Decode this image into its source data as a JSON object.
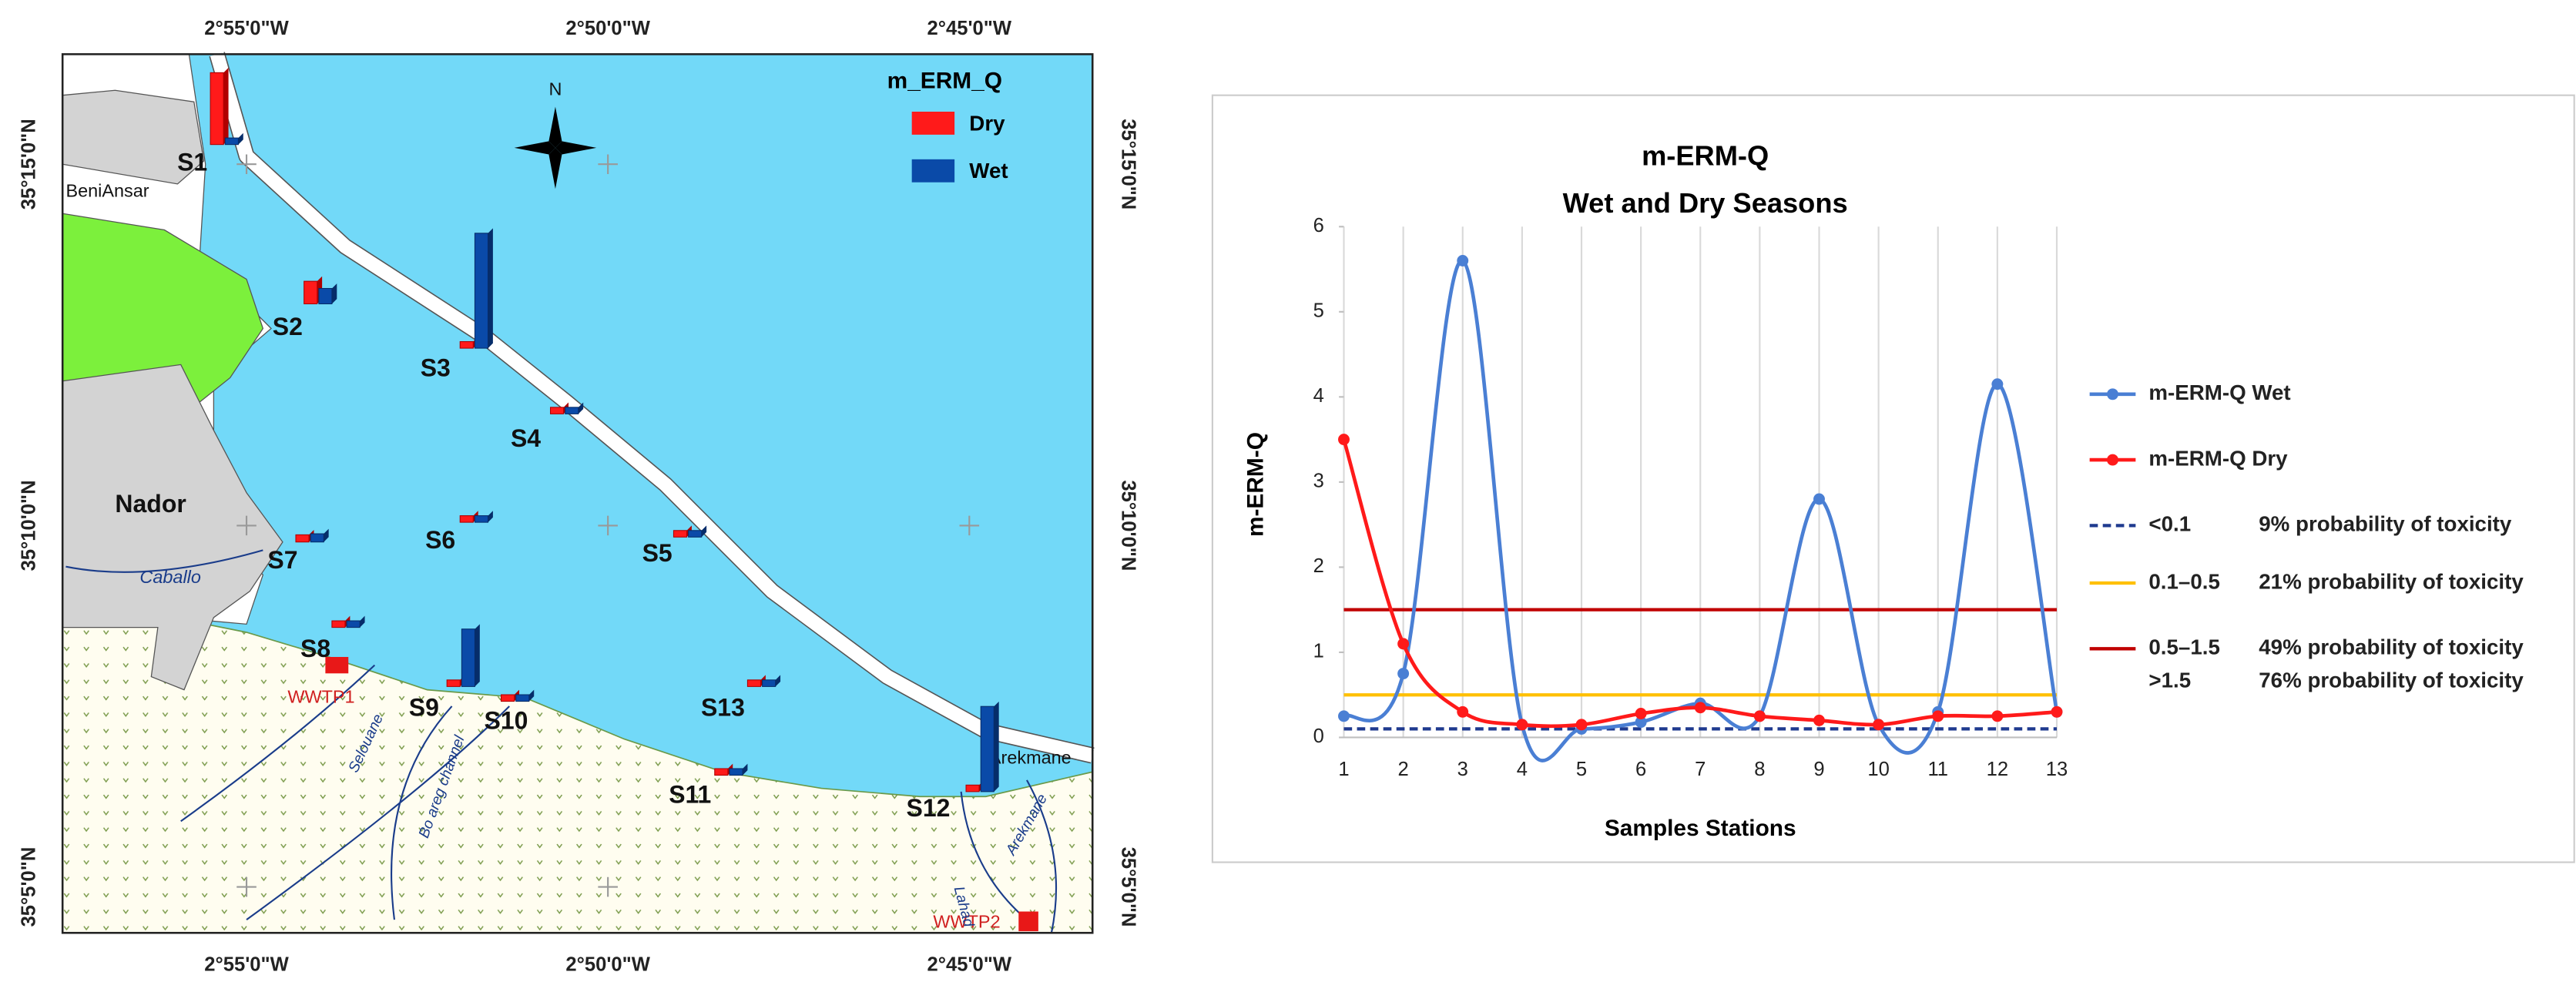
{
  "map": {
    "coordinates_top": [
      "2°55'0\"W",
      "2°50'0\"W",
      "2°45'0\"W"
    ],
    "coordinates_bottom": [
      "2°55'0\"W",
      "2°50'0\"W",
      "2°45'0\"W"
    ],
    "coordinates_left": [
      "35°15'0\"N",
      "35°10'0\"N",
      "35°5'0\"N"
    ],
    "coordinates_right": [
      "35°15'0\"N",
      "35°10'0\"N",
      "35°5'0\"N"
    ],
    "legend": {
      "title": "m_ERM_Q",
      "items": [
        "Dry",
        "Wet"
      ]
    },
    "north": "N",
    "places": [
      "BeniAnsar",
      "Nador",
      "Caballo",
      "Arekmane",
      "WWTP1",
      "WWTP2"
    ],
    "rivers": [
      "Selouane",
      "Bo areg channel",
      "Lahad",
      "Arekmane"
    ],
    "stations": [
      "S1",
      "S2",
      "S3",
      "S4",
      "S5",
      "S6",
      "S7",
      "S8",
      "S9",
      "S10",
      "S11",
      "S12",
      "S13"
    ]
  },
  "chart_data": {
    "type": "line",
    "title": "m-ERM-Q",
    "subtitle": "Wet and Dry Seasons",
    "x_label": "Samples Stations",
    "y_label": "m-ERM-Q",
    "x": [
      1,
      2,
      3,
      4,
      5,
      6,
      7,
      8,
      9,
      10,
      11,
      12,
      13
    ],
    "xlim": [
      1,
      13
    ],
    "xticks": [
      1,
      2,
      3,
      4,
      5,
      6,
      7,
      8,
      9,
      10,
      11,
      12,
      13
    ],
    "ylim": [
      0,
      6
    ],
    "yticks": [
      0,
      1,
      2,
      3,
      4,
      5,
      6
    ],
    "grid": "x",
    "smooth": true,
    "series": [
      {
        "name": "m-ERM-Q  Wet",
        "color": "#4a7fd4",
        "values": [
          0.25,
          0.75,
          5.6,
          0.15,
          0.1,
          0.18,
          0.4,
          0.25,
          2.8,
          0.15,
          0.3,
          4.15,
          0.3
        ]
      },
      {
        "name": "m-ERM-Q  Dry",
        "color": "#ff1a1a",
        "values": [
          3.5,
          1.1,
          0.3,
          0.15,
          0.15,
          0.28,
          0.35,
          0.25,
          0.2,
          0.15,
          0.25,
          0.25,
          0.3
        ]
      }
    ],
    "reference_lines": [
      {
        "range": "<0.1",
        "label": "9% probability of toxicity",
        "value": 0.1,
        "color": "#1f3a8f",
        "dashed": true
      },
      {
        "range": "0.1–0.5",
        "label": "21% probability  of toxicity",
        "value": 0.5,
        "color": "#ffc000",
        "dashed": false
      },
      {
        "range": "0.5–1.5",
        "label": "49% probability  of toxicity",
        "value": 1.5,
        "color": "#c00000",
        "dashed": false
      }
    ],
    "legend_notes": [
      {
        "range": ">1.5",
        "label": "76% probability of toxicity"
      }
    ]
  }
}
